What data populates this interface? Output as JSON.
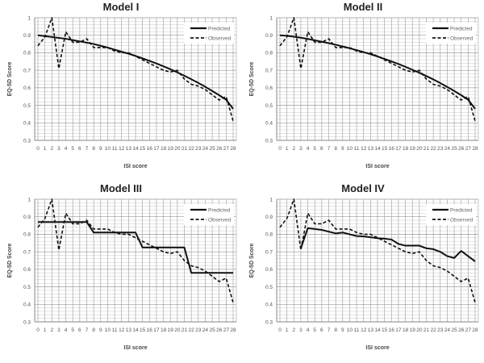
{
  "figure": {
    "panels": [
      {
        "title": "Model I"
      },
      {
        "title": "Model II"
      },
      {
        "title": "Model III"
      },
      {
        "title": "Model IV"
      }
    ],
    "xlabel": "ISI score",
    "ylabel": "EQ-5D Score",
    "legend": {
      "predicted": "Predicted",
      "observed": "Observed"
    }
  },
  "chart_data": [
    {
      "type": "line",
      "title": "Model I",
      "xlabel": "ISI score",
      "ylabel": "EQ-5D Score",
      "ylim": [
        0.3,
        1.0
      ],
      "yticks": [
        0.3,
        0.4,
        0.5,
        0.6,
        0.7,
        0.8,
        0.9,
        1
      ],
      "x": [
        0,
        1,
        2,
        3,
        4,
        5,
        6,
        7,
        8,
        9,
        10,
        11,
        12,
        13,
        14,
        15,
        16,
        17,
        18,
        19,
        20,
        21,
        22,
        23,
        24,
        25,
        26,
        27,
        28
      ],
      "grid": true,
      "legend_position": "top-right",
      "series": [
        {
          "name": "Predicted",
          "style": "solid",
          "values": [
            0.9,
            0.895,
            0.89,
            0.885,
            0.88,
            0.872,
            0.865,
            0.858,
            0.85,
            0.84,
            0.83,
            0.818,
            0.806,
            0.795,
            0.782,
            0.768,
            0.754,
            0.739,
            0.723,
            0.706,
            0.688,
            0.669,
            0.649,
            0.628,
            0.606,
            0.582,
            0.558,
            0.532,
            0.48
          ]
        },
        {
          "name": "Observed",
          "style": "dashed",
          "values": [
            0.84,
            0.89,
            1.0,
            0.71,
            0.92,
            0.86,
            0.86,
            0.88,
            0.83,
            0.83,
            0.83,
            0.81,
            0.8,
            0.8,
            0.78,
            0.76,
            0.74,
            0.72,
            0.7,
            0.69,
            0.7,
            0.65,
            0.62,
            0.61,
            0.59,
            0.56,
            0.53,
            0.55,
            0.41
          ]
        }
      ]
    },
    {
      "type": "line",
      "title": "Model II",
      "xlabel": "ISI score",
      "ylabel": "EQ-5D Score",
      "ylim": [
        0.3,
        1.0
      ],
      "yticks": [
        0.3,
        0.4,
        0.5,
        0.6,
        0.7,
        0.8,
        0.9,
        1
      ],
      "x": [
        0,
        1,
        2,
        3,
        4,
        5,
        6,
        7,
        8,
        9,
        10,
        11,
        12,
        13,
        14,
        15,
        16,
        17,
        18,
        19,
        20,
        21,
        22,
        23,
        24,
        25,
        26,
        27,
        28
      ],
      "grid": true,
      "legend_position": "top-right",
      "series": [
        {
          "name": "Predicted",
          "style": "solid",
          "values": [
            0.9,
            0.897,
            0.892,
            0.886,
            0.879,
            0.871,
            0.863,
            0.855,
            0.846,
            0.836,
            0.826,
            0.815,
            0.804,
            0.792,
            0.779,
            0.765,
            0.751,
            0.736,
            0.72,
            0.703,
            0.686,
            0.667,
            0.648,
            0.627,
            0.605,
            0.582,
            0.558,
            0.532,
            0.48
          ]
        },
        {
          "name": "Observed",
          "style": "dashed",
          "values": [
            0.84,
            0.89,
            1.0,
            0.71,
            0.92,
            0.86,
            0.86,
            0.88,
            0.83,
            0.83,
            0.83,
            0.81,
            0.8,
            0.8,
            0.78,
            0.76,
            0.74,
            0.72,
            0.7,
            0.69,
            0.7,
            0.65,
            0.62,
            0.61,
            0.59,
            0.56,
            0.53,
            0.55,
            0.41
          ]
        }
      ]
    },
    {
      "type": "line",
      "title": "Model III",
      "xlabel": "ISI score",
      "ylabel": "EQ-5D Score",
      "ylim": [
        0.3,
        1.0
      ],
      "yticks": [
        0.3,
        0.4,
        0.5,
        0.6,
        0.7,
        0.8,
        0.9,
        1
      ],
      "x": [
        0,
        1,
        2,
        3,
        4,
        5,
        6,
        7,
        8,
        9,
        10,
        11,
        12,
        13,
        14,
        15,
        16,
        17,
        18,
        19,
        20,
        21,
        22,
        23,
        24,
        25,
        26,
        27,
        28
      ],
      "grid": true,
      "legend_position": "top-right",
      "series": [
        {
          "name": "Predicted",
          "style": "solid",
          "values": [
            0.87,
            0.87,
            0.87,
            0.87,
            0.87,
            0.87,
            0.87,
            0.87,
            0.81,
            0.81,
            0.81,
            0.81,
            0.81,
            0.81,
            0.81,
            0.725,
            0.725,
            0.725,
            0.725,
            0.725,
            0.725,
            0.725,
            0.58,
            0.58,
            0.58,
            0.58,
            0.58,
            0.58,
            0.58
          ]
        },
        {
          "name": "Observed",
          "style": "dashed",
          "values": [
            0.84,
            0.89,
            1.0,
            0.71,
            0.92,
            0.86,
            0.86,
            0.88,
            0.83,
            0.83,
            0.83,
            0.81,
            0.8,
            0.8,
            0.78,
            0.76,
            0.74,
            0.72,
            0.7,
            0.69,
            0.7,
            0.65,
            0.62,
            0.61,
            0.59,
            0.56,
            0.53,
            0.55,
            0.41
          ]
        }
      ]
    },
    {
      "type": "line",
      "title": "Model IV",
      "xlabel": "ISI score",
      "ylabel": "EQ-5D Score",
      "ylim": [
        0.3,
        1.0
      ],
      "yticks": [
        0.3,
        0.4,
        0.5,
        0.6,
        0.7,
        0.8,
        0.9,
        1
      ],
      "x": [
        0,
        1,
        2,
        3,
        4,
        5,
        6,
        7,
        8,
        9,
        10,
        11,
        12,
        13,
        14,
        15,
        16,
        17,
        18,
        19,
        20,
        21,
        22,
        23,
        24,
        25,
        26,
        27,
        28
      ],
      "grid": true,
      "legend_position": "top-right",
      "series": [
        {
          "name": "Predicted",
          "style": "solid",
          "values": [
            null,
            null,
            null,
            0.72,
            0.835,
            0.83,
            0.825,
            0.815,
            0.805,
            0.81,
            0.8,
            0.79,
            0.788,
            0.783,
            0.778,
            0.775,
            0.77,
            0.745,
            0.735,
            0.735,
            0.735,
            0.72,
            0.715,
            0.7,
            0.675,
            0.665,
            0.705,
            0.675,
            0.645
          ]
        },
        {
          "name": "Observed",
          "style": "dashed",
          "values": [
            0.84,
            0.89,
            1.0,
            0.71,
            0.92,
            0.86,
            0.86,
            0.88,
            0.83,
            0.83,
            0.83,
            0.81,
            0.8,
            0.8,
            0.78,
            0.76,
            0.74,
            0.72,
            0.7,
            0.69,
            0.7,
            0.65,
            0.62,
            0.61,
            0.59,
            0.56,
            0.53,
            0.55,
            0.41
          ]
        }
      ]
    }
  ]
}
